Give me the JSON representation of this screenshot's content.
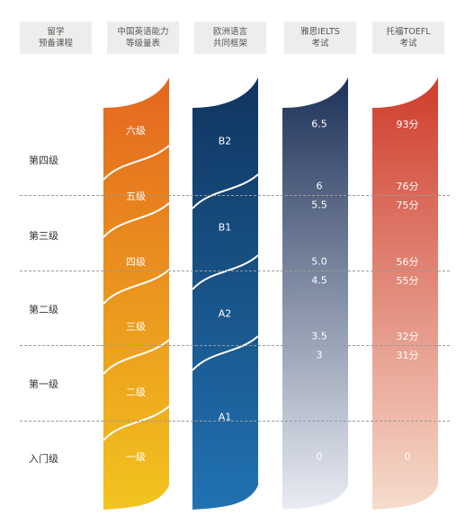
{
  "headers": [
    {
      "line1": "留学",
      "line2": "预备课程"
    },
    {
      "line1": "中国英语能力",
      "line2": "等级量表"
    },
    {
      "line1": "欧洲语言",
      "line2": "共同框架"
    },
    {
      "line1": "雅思IELTS",
      "line2": "考试"
    },
    {
      "line1": "托福TOEFL",
      "line2": "考试"
    }
  ],
  "levels": [
    "第四级",
    "第三级",
    "第二级",
    "第一级",
    "入门级"
  ],
  "china_scale": [
    "六级",
    "五级",
    "四级",
    "三级",
    "二级",
    "一级"
  ],
  "cefr": [
    "B2",
    "B1",
    "A2",
    "A1"
  ],
  "ielts": [
    "6.5",
    "6",
    "5.5",
    "5.0",
    "4.5",
    "3.5",
    "3",
    "0"
  ],
  "toefl": [
    "93分",
    "76分",
    "75分",
    "56分",
    "55分",
    "32分",
    "31分",
    "0"
  ],
  "colors": {
    "orange_top": "#e4661f",
    "orange_bottom": "#f2c41e",
    "navy_top": "#10355f",
    "navy_bottom": "#2172b2",
    "slate_top": "#1d3158",
    "slate_bottom": "#e9ecf3",
    "red_top": "#cf3c2c",
    "red_bottom": "#f6dccd"
  }
}
